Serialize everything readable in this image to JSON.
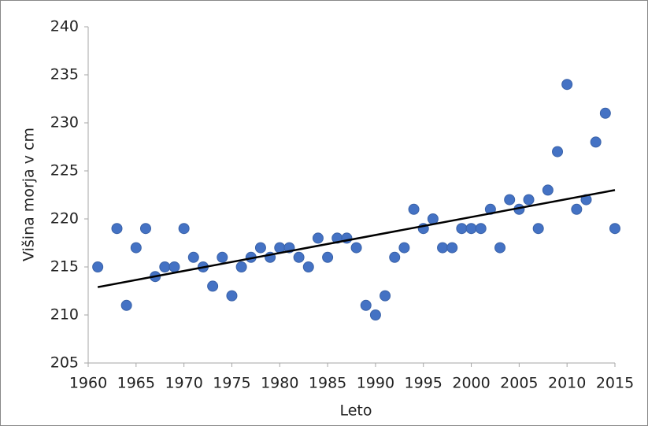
{
  "chart_data": {
    "type": "scatter",
    "x_label": "Leto",
    "y_label": "Višina morja v cm",
    "x": [
      1961,
      1963,
      1964,
      1965,
      1966,
      1967,
      1968,
      1969,
      1970,
      1971,
      1972,
      1973,
      1974,
      1975,
      1976,
      1977,
      1978,
      1979,
      1980,
      1981,
      1982,
      1983,
      1984,
      1985,
      1986,
      1987,
      1988,
      1989,
      1990,
      1991,
      1992,
      1993,
      1994,
      1995,
      1996,
      1997,
      1998,
      1999,
      2000,
      2001,
      2002,
      2003,
      2004,
      2005,
      2006,
      2007,
      2008,
      2009,
      2010,
      2011,
      2012,
      2013,
      2014,
      2015
    ],
    "values": [
      215,
      219,
      211,
      217,
      219,
      214,
      215,
      215,
      219,
      216,
      215,
      213,
      216,
      212,
      215,
      216,
      217,
      216,
      217,
      217,
      216,
      215,
      218,
      216,
      218,
      218,
      217,
      211,
      210,
      212,
      216,
      217,
      221,
      219,
      220,
      217,
      217,
      219,
      219,
      219,
      221,
      217,
      222,
      221,
      222,
      219,
      223,
      227,
      234,
      221,
      222,
      228,
      231,
      219
    ],
    "color": "#4472c4",
    "trendline": {
      "x": [
        1961,
        2015
      ],
      "values": [
        212.9,
        223.0
      ],
      "color": "#000000"
    },
    "xlim": [
      1960,
      2015
    ],
    "xticks": [
      1960,
      1965,
      1970,
      1975,
      1980,
      1985,
      1990,
      1995,
      2000,
      2005,
      2010,
      2015
    ],
    "ylim": [
      205,
      240
    ],
    "yticks": [
      205,
      210,
      215,
      220,
      225,
      230,
      235,
      240
    ]
  }
}
